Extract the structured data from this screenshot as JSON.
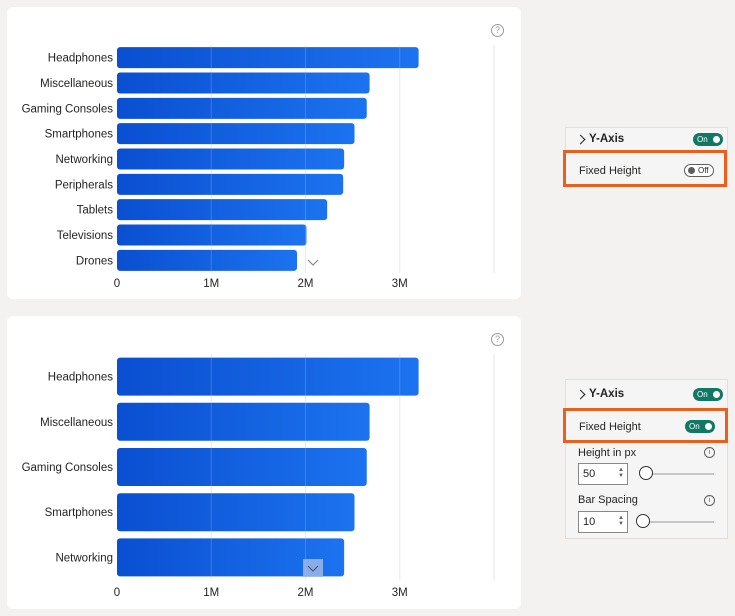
{
  "charts": [
    {
      "chart_data": {
        "type": "bar",
        "orientation": "horizontal",
        "categories": [
          "Headphones",
          "Miscellaneous",
          "Gaming Consoles",
          "Smartphones",
          "Networking",
          "Peripherals",
          "Tablets",
          "Televisions",
          "Drones"
        ],
        "values": [
          3.2,
          2.68,
          2.65,
          2.52,
          2.41,
          2.4,
          2.23,
          2.01,
          1.91
        ],
        "x_ticks": [
          "0",
          "1M",
          "2M",
          "3M"
        ],
        "xlim": [
          0,
          4
        ],
        "color": "#1160e6"
      }
    },
    {
      "chart_data": {
        "type": "bar",
        "orientation": "horizontal",
        "categories": [
          "Headphones",
          "Miscellaneous",
          "Gaming Consoles",
          "Smartphones",
          "Networking"
        ],
        "values": [
          3.2,
          2.68,
          2.65,
          2.52,
          2.41
        ],
        "x_ticks": [
          "0",
          "1M",
          "2M",
          "3M"
        ],
        "xlim": [
          0,
          4
        ],
        "color": "#1160e6"
      }
    }
  ],
  "panel_top": {
    "section_title": "Y-Axis",
    "section_toggle": "On",
    "fixed_height_label": "Fixed Height",
    "fixed_height_toggle": "Off"
  },
  "panel_bottom": {
    "section_title": "Y-Axis",
    "section_toggle": "On",
    "fixed_height_label": "Fixed Height",
    "fixed_height_toggle": "On",
    "height_label": "Height in px",
    "height_value": "50",
    "height_slider_fraction": 0.05,
    "spacing_label": "Bar Spacing",
    "spacing_value": "10",
    "spacing_slider_fraction": 0.02
  },
  "colors": {
    "accent": "#117865",
    "highlight": "#e8601c"
  }
}
